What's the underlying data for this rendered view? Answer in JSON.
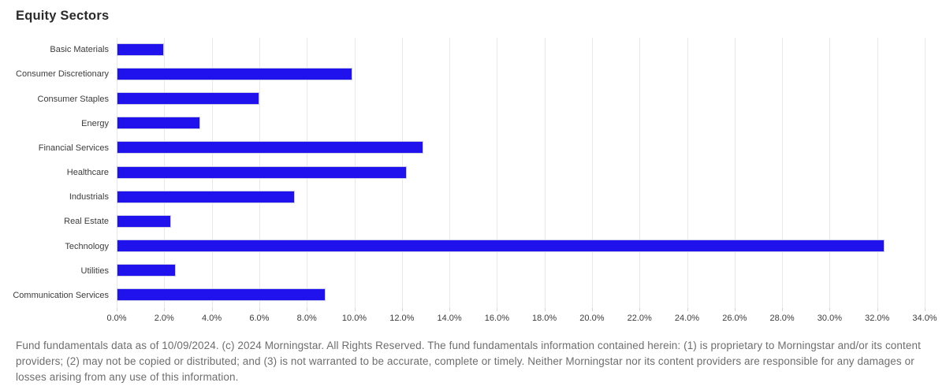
{
  "title": "Equity Sectors",
  "footer": "Fund fundamentals data as of 10/09/2024. (c) 2024 Morningstar. All Rights Reserved. The fund fundamentals information contained herein: (1) is proprietary to Morningstar and/or its content providers; (2) may not be copied or distributed; and (3) is not warranted to be accurate, complete or timely. Neither Morningstar nor its content providers are responsible for any damages or losses arising from any use of this information.",
  "colors": {
    "background": "#ffffff",
    "bar": "#2012ed",
    "bar_border": "#c9c9e8",
    "grid": "#e8e8e8",
    "title": "#2b2b2b",
    "label": "#3c3c3c",
    "footer": "#6e6e6e"
  },
  "chart_data": {
    "type": "bar",
    "orientation": "horizontal",
    "title": "Equity Sectors",
    "xlabel": "",
    "ylabel": "",
    "categories": [
      "Basic Materials",
      "Consumer Discretionary",
      "Consumer Staples",
      "Energy",
      "Financial Services",
      "Healthcare",
      "Industrials",
      "Real Estate",
      "Technology",
      "Utilities",
      "Communication Services"
    ],
    "values": [
      2.0,
      9.9,
      6.0,
      3.5,
      12.9,
      12.2,
      7.5,
      2.3,
      32.3,
      2.5,
      8.8
    ],
    "unit": "%",
    "xlim": [
      0,
      34
    ],
    "x_tick_step": 2,
    "x_tick_labels": [
      "0.0%",
      "2.0%",
      "4.0%",
      "6.0%",
      "8.0%",
      "10.0%",
      "12.0%",
      "14.0%",
      "16.0%",
      "18.0%",
      "20.0%",
      "22.0%",
      "24.0%",
      "26.0%",
      "28.0%",
      "30.0%",
      "32.0%",
      "34.0%"
    ],
    "grid": true,
    "legend": false
  }
}
